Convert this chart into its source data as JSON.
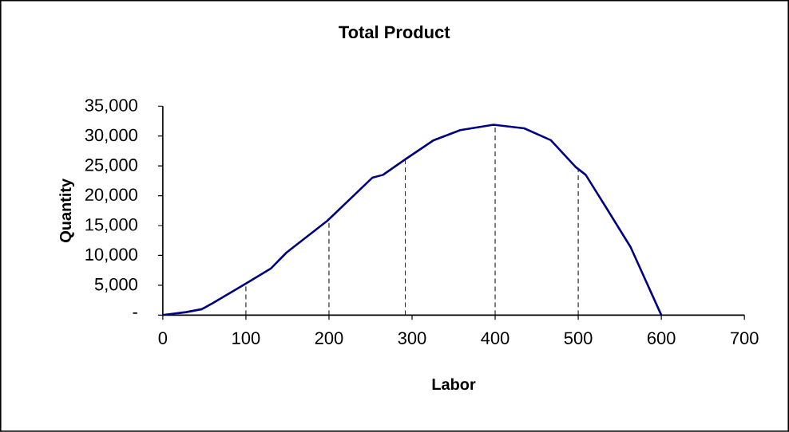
{
  "chart_data": {
    "type": "line",
    "title": "Total Product",
    "xlabel": "Labor",
    "ylabel": "Quantity",
    "x": [
      0,
      28,
      47,
      60,
      99,
      130,
      149,
      198,
      252,
      265,
      294,
      326,
      358,
      398,
      435,
      467,
      497,
      509,
      535,
      563,
      600
    ],
    "series": [
      {
        "color": "#000080",
        "values": [
          0,
          500,
          1000,
          2000,
          5200,
          7800,
          10500,
          15800,
          23000,
          23500,
          26300,
          29300,
          31000,
          31900,
          31300,
          29300,
          24800,
          23500,
          17700,
          11400,
          0
        ]
      }
    ],
    "xlim": [
      0,
      700
    ],
    "xticks": [
      0,
      100,
      200,
      300,
      400,
      500,
      600,
      700
    ],
    "ylim": [
      0,
      35000
    ],
    "yticks": [
      {
        "value": 0,
        "label": "-"
      },
      {
        "value": 5000,
        "label": "5,000"
      },
      {
        "value": 10000,
        "label": "10,000"
      },
      {
        "value": 15000,
        "label": "15,000"
      },
      {
        "value": 20000,
        "label": "20,000"
      },
      {
        "value": 25000,
        "label": "25,000"
      },
      {
        "value": 30000,
        "label": "30,000"
      },
      {
        "value": 35000,
        "label": "35,000"
      }
    ],
    "ref_lines": [
      {
        "axis": "x",
        "value": 100,
        "color": "#000000",
        "line_style": "dashed"
      },
      {
        "axis": "x",
        "value": 200,
        "color": "#000000",
        "line_style": "dashed"
      },
      {
        "axis": "x",
        "value": 292,
        "color": "#000000",
        "line_style": "dashed"
      },
      {
        "axis": "x",
        "value": 400,
        "color": "#000000",
        "line_style": "dashed"
      },
      {
        "axis": "x",
        "value": 500,
        "color": "#000000",
        "line_style": "dashed"
      }
    ],
    "grid": false,
    "marker": "none",
    "line_style": "solid"
  }
}
